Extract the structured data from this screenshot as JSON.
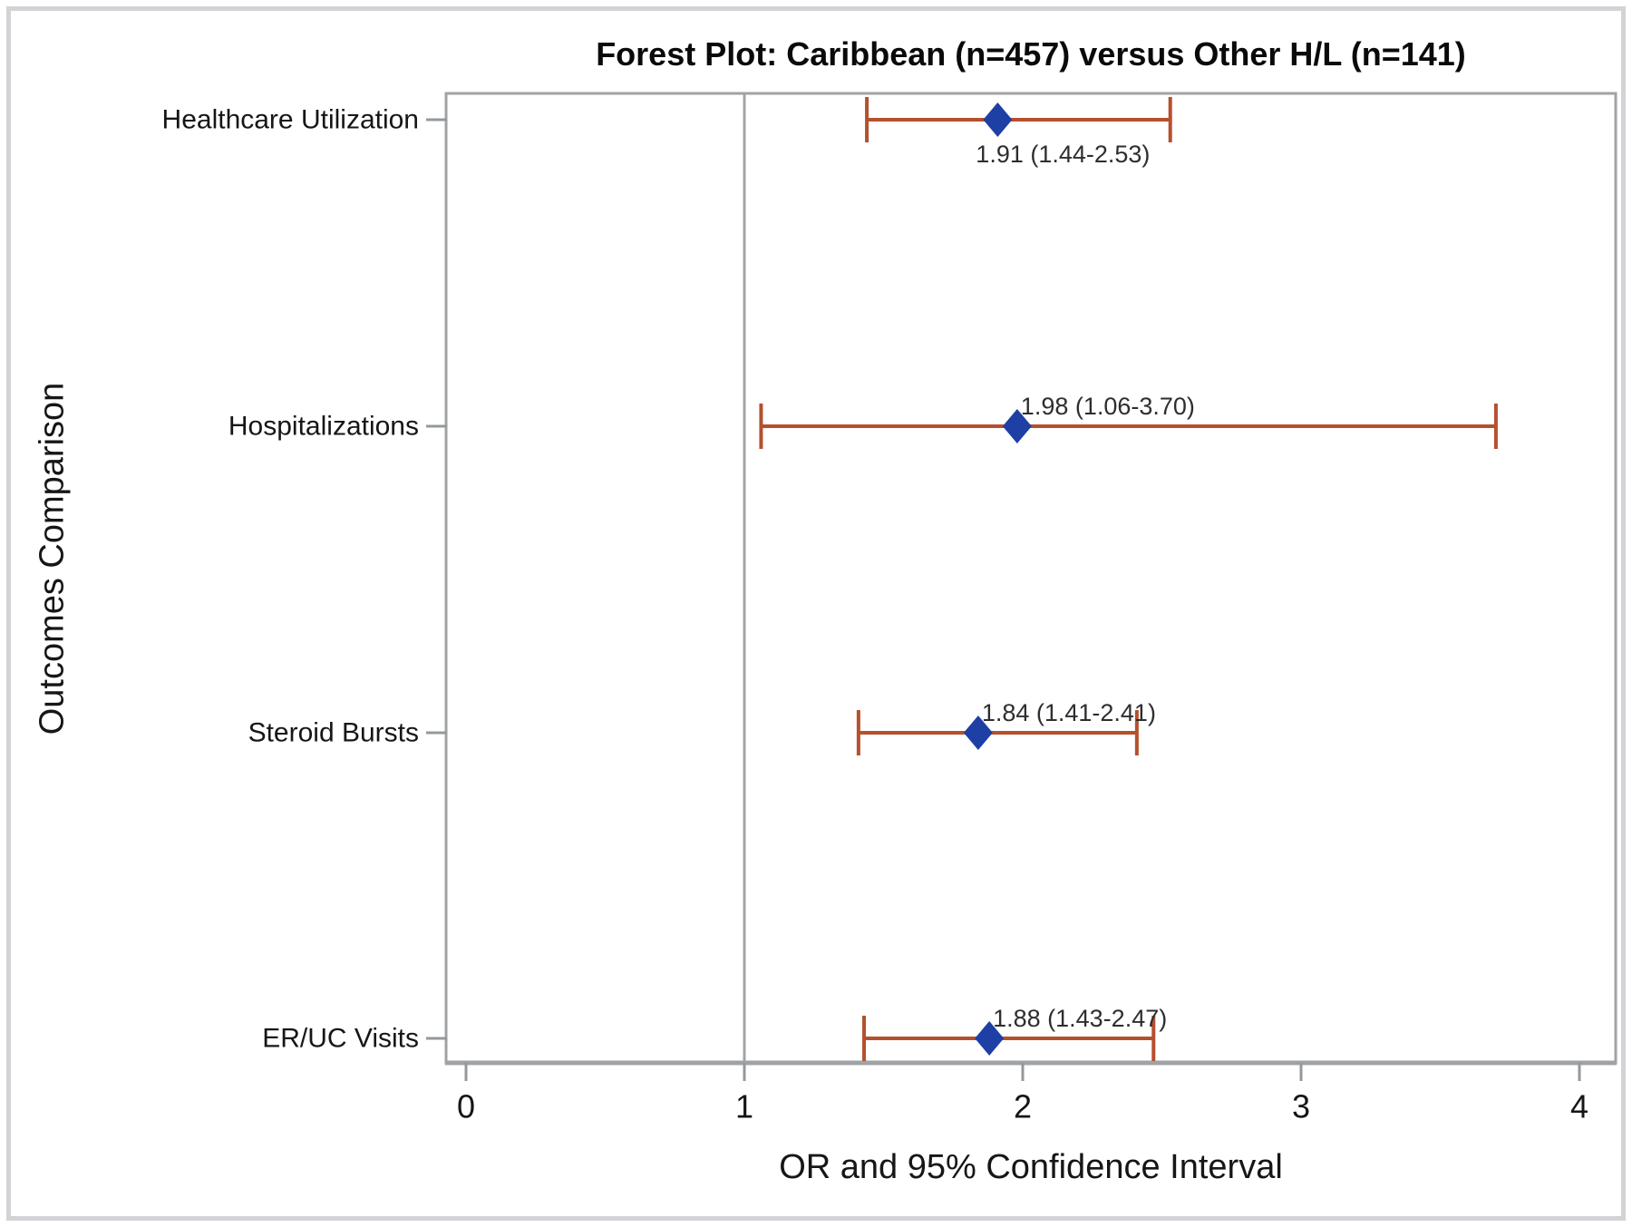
{
  "chart_data": {
    "type": "forest",
    "title": "Forest Plot: Caribbean (n=457) versus Other H/L (n=141)",
    "xlabel": "OR and 95% Confidence Interval",
    "ylabel": "Outcomes Comparison",
    "xlim": [
      0,
      4
    ],
    "x_ticks": [
      "0",
      "1",
      "2",
      "3",
      "4"
    ],
    "reference_line_x": 1,
    "grid": false,
    "legend": "none",
    "rows": [
      {
        "category": "Healthcare Utilization",
        "or": 1.91,
        "ci_low": 1.44,
        "ci_high": 2.53,
        "label": "1.91 (1.44-2.53)",
        "label_pos": "below"
      },
      {
        "category": "Hospitalizations",
        "or": 1.98,
        "ci_low": 1.06,
        "ci_high": 3.7,
        "label": "1.98 (1.06-3.70)",
        "label_pos": "above"
      },
      {
        "category": "Steroid Bursts",
        "or": 1.84,
        "ci_low": 1.41,
        "ci_high": 2.41,
        "label": "1.84 (1.41-2.41)",
        "label_pos": "above"
      },
      {
        "category": "ER/UC Visits",
        "or": 1.88,
        "ci_low": 1.43,
        "ci_high": 2.47,
        "label": "1.88 (1.43-2.47)",
        "label_pos": "above"
      }
    ],
    "colors": {
      "marker": "#1e3fa4",
      "error_bar": "#b5502d",
      "reference_line": "#a0a3a6",
      "frame": "#a0a3a6",
      "tick": "#95989b",
      "axis_text": "#161616",
      "value_label_text": "#2e2e2e",
      "figure_border": "#d2d3d6",
      "background": "#ffffff"
    }
  }
}
